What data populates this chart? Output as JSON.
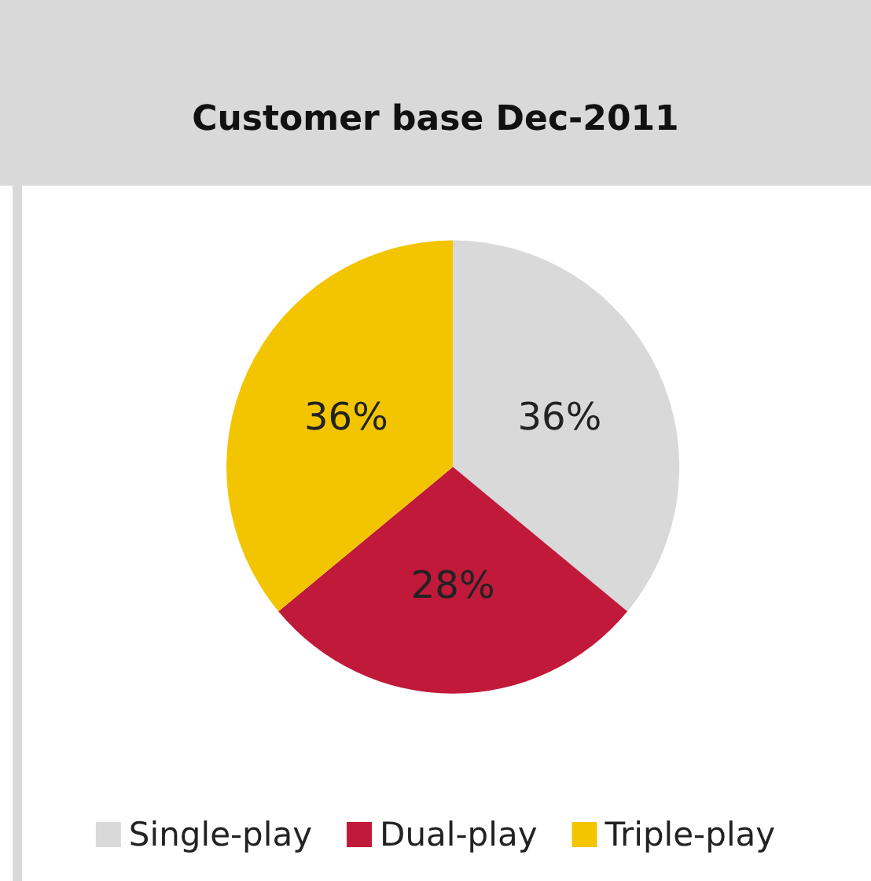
{
  "chart_data": {
    "type": "pie",
    "title": "Customer base Dec-2011",
    "categories": [
      "Single-play",
      "Dual-play",
      "Triple-play"
    ],
    "values": [
      36,
      28,
      36
    ],
    "colors": [
      "#d9d9d9",
      "#c0193a",
      "#f2c500"
    ],
    "value_labels": [
      "36%",
      "28%",
      "36%"
    ],
    "legend": "bottom"
  }
}
